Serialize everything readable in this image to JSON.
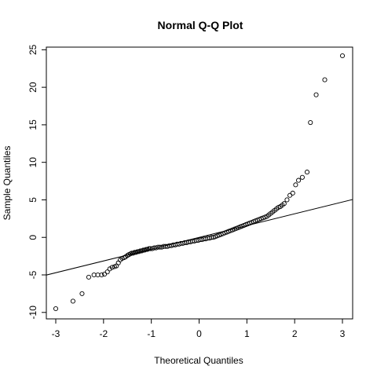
{
  "chart_data": {
    "type": "scatter",
    "title": "Normal Q-Q Plot",
    "xlabel": "Theoretical Quantiles",
    "ylabel": "Sample Quantiles",
    "xlim": [
      -3.0,
      3.0
    ],
    "ylim": [
      -9.5,
      24.2
    ],
    "x_ticks": [
      -3,
      -2,
      -1,
      0,
      1,
      2,
      3
    ],
    "y_ticks": [
      -10,
      -5,
      0,
      5,
      10,
      15,
      20,
      25
    ],
    "grid": false,
    "legend": "none",
    "reference_line": {
      "slope": 1.57,
      "intercept": 0.0
    },
    "points": [
      [
        -3.0,
        -9.5
      ],
      [
        -2.64,
        -8.5
      ],
      [
        -2.45,
        -7.5
      ],
      [
        -2.31,
        -5.3
      ],
      [
        -2.2,
        -5.0
      ],
      [
        -2.12,
        -5.0
      ],
      [
        -2.04,
        -5.0
      ],
      [
        -1.98,
        -4.9
      ],
      [
        -1.92,
        -4.6
      ],
      [
        -1.87,
        -4.2
      ],
      [
        -1.82,
        -4.0
      ],
      [
        -1.77,
        -3.9
      ],
      [
        -1.73,
        -3.8
      ],
      [
        -1.69,
        -3.4
      ],
      [
        -1.65,
        -3.0
      ],
      [
        -1.61,
        -2.8
      ],
      [
        -1.57,
        -2.7
      ],
      [
        -1.54,
        -2.6
      ],
      [
        -1.5,
        -2.4
      ],
      [
        -1.47,
        -2.3
      ],
      [
        -1.44,
        -2.2
      ],
      [
        -1.41,
        -2.1
      ],
      [
        -1.38,
        -2.1
      ],
      [
        -1.35,
        -2.0
      ],
      [
        -1.32,
        -2.0
      ],
      [
        -1.29,
        -1.9
      ],
      [
        -1.26,
        -1.9
      ],
      [
        -1.23,
        -1.8
      ],
      [
        -1.2,
        -1.8
      ],
      [
        -1.17,
        -1.7
      ],
      [
        -1.14,
        -1.7
      ],
      [
        -1.11,
        -1.6
      ],
      [
        -1.08,
        -1.6
      ],
      [
        -1.05,
        -1.5
      ],
      [
        -1.02,
        -1.5
      ],
      [
        -0.98,
        -1.5
      ],
      [
        -0.94,
        -1.4
      ],
      [
        -0.9,
        -1.4
      ],
      [
        -0.86,
        -1.3
      ],
      [
        -0.82,
        -1.3
      ],
      [
        -0.78,
        -1.3
      ],
      [
        -0.74,
        -1.2
      ],
      [
        -0.7,
        -1.2
      ],
      [
        -0.66,
        -1.2
      ],
      [
        -0.62,
        -1.1
      ],
      [
        -0.58,
        -1.1
      ],
      [
        -0.54,
        -1.0
      ],
      [
        -0.5,
        -1.0
      ],
      [
        -0.46,
        -0.9
      ],
      [
        -0.42,
        -0.9
      ],
      [
        -0.38,
        -0.8
      ],
      [
        -0.34,
        -0.8
      ],
      [
        -0.3,
        -0.7
      ],
      [
        -0.26,
        -0.7
      ],
      [
        -0.22,
        -0.6
      ],
      [
        -0.18,
        -0.6
      ],
      [
        -0.14,
        -0.5
      ],
      [
        -0.1,
        -0.5
      ],
      [
        -0.06,
        -0.4
      ],
      [
        -0.02,
        -0.4
      ],
      [
        0.02,
        -0.3
      ],
      [
        0.06,
        -0.3
      ],
      [
        0.1,
        -0.2
      ],
      [
        0.14,
        -0.2
      ],
      [
        0.18,
        -0.1
      ],
      [
        0.22,
        -0.1
      ],
      [
        0.26,
        0.0
      ],
      [
        0.3,
        0.0
      ],
      [
        0.34,
        0.1
      ],
      [
        0.38,
        0.2
      ],
      [
        0.42,
        0.3
      ],
      [
        0.46,
        0.4
      ],
      [
        0.5,
        0.5
      ],
      [
        0.54,
        0.6
      ],
      [
        0.58,
        0.7
      ],
      [
        0.62,
        0.8
      ],
      [
        0.66,
        0.9
      ],
      [
        0.7,
        1.0
      ],
      [
        0.74,
        1.1
      ],
      [
        0.78,
        1.2
      ],
      [
        0.82,
        1.3
      ],
      [
        0.86,
        1.4
      ],
      [
        0.9,
        1.5
      ],
      [
        0.94,
        1.6
      ],
      [
        0.98,
        1.7
      ],
      [
        1.02,
        1.8
      ],
      [
        1.06,
        1.9
      ],
      [
        1.1,
        2.0
      ],
      [
        1.14,
        2.1
      ],
      [
        1.18,
        2.2
      ],
      [
        1.22,
        2.3
      ],
      [
        1.26,
        2.4
      ],
      [
        1.3,
        2.5
      ],
      [
        1.34,
        2.6
      ],
      [
        1.38,
        2.7
      ],
      [
        1.42,
        2.8
      ],
      [
        1.46,
        3.0
      ],
      [
        1.5,
        3.2
      ],
      [
        1.54,
        3.4
      ],
      [
        1.58,
        3.6
      ],
      [
        1.62,
        3.8
      ],
      [
        1.66,
        4.0
      ],
      [
        1.7,
        4.1
      ],
      [
        1.74,
        4.3
      ],
      [
        1.78,
        4.5
      ],
      [
        1.84,
        5.0
      ],
      [
        1.9,
        5.6
      ],
      [
        1.96,
        5.9
      ],
      [
        2.02,
        7.0
      ],
      [
        2.08,
        7.6
      ],
      [
        2.16,
        8.0
      ],
      [
        2.26,
        8.7
      ],
      [
        2.33,
        15.3
      ],
      [
        2.45,
        19.0
      ],
      [
        2.63,
        21.0
      ],
      [
        3.0,
        24.2
      ]
    ]
  }
}
